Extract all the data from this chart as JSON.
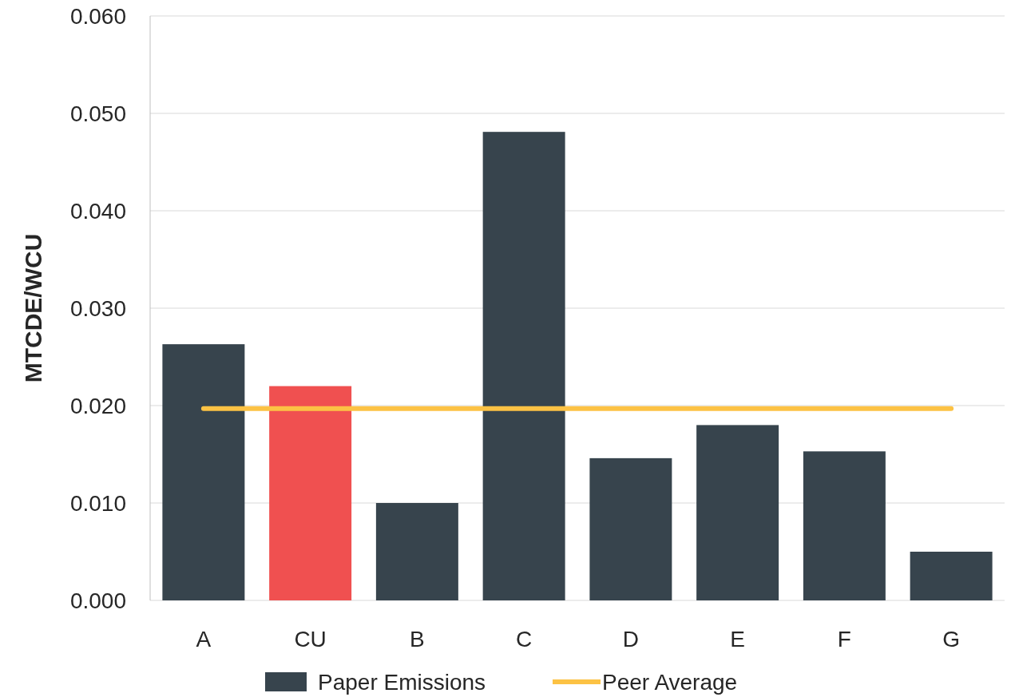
{
  "chart_data": {
    "type": "bar",
    "ylabel": "MTCDE/WCU",
    "categories": [
      "A",
      "CU",
      "B",
      "C",
      "D",
      "E",
      "F",
      "G"
    ],
    "series": [
      {
        "name": "Paper Emissions",
        "color": "#37444d",
        "colors": [
          "#37444d",
          "#f05050",
          "#37444d",
          "#37444d",
          "#37444d",
          "#37444d",
          "#37444d",
          "#37444d"
        ],
        "values": [
          0.0263,
          0.022,
          0.01,
          0.0481,
          0.0146,
          0.018,
          0.0153,
          0.005
        ]
      },
      {
        "name": "Peer Average",
        "type": "line",
        "color": "#fcc244",
        "values": [
          0.0197,
          0.0197,
          0.0197,
          0.0197,
          0.0197,
          0.0197,
          0.0197,
          0.0197
        ]
      }
    ],
    "ylim": [
      0,
      0.06
    ],
    "yticks": [
      {
        "value": 0,
        "label": "0.000"
      },
      {
        "value": 0.01,
        "label": "0.010"
      },
      {
        "value": 0.02,
        "label": "0.020"
      },
      {
        "value": 0.03,
        "label": "0.030"
      },
      {
        "value": 0.04,
        "label": "0.040"
      },
      {
        "value": 0.05,
        "label": "0.050"
      },
      {
        "value": 0.06,
        "label": "0.060"
      }
    ],
    "grid": "y",
    "legend": "bottom"
  }
}
